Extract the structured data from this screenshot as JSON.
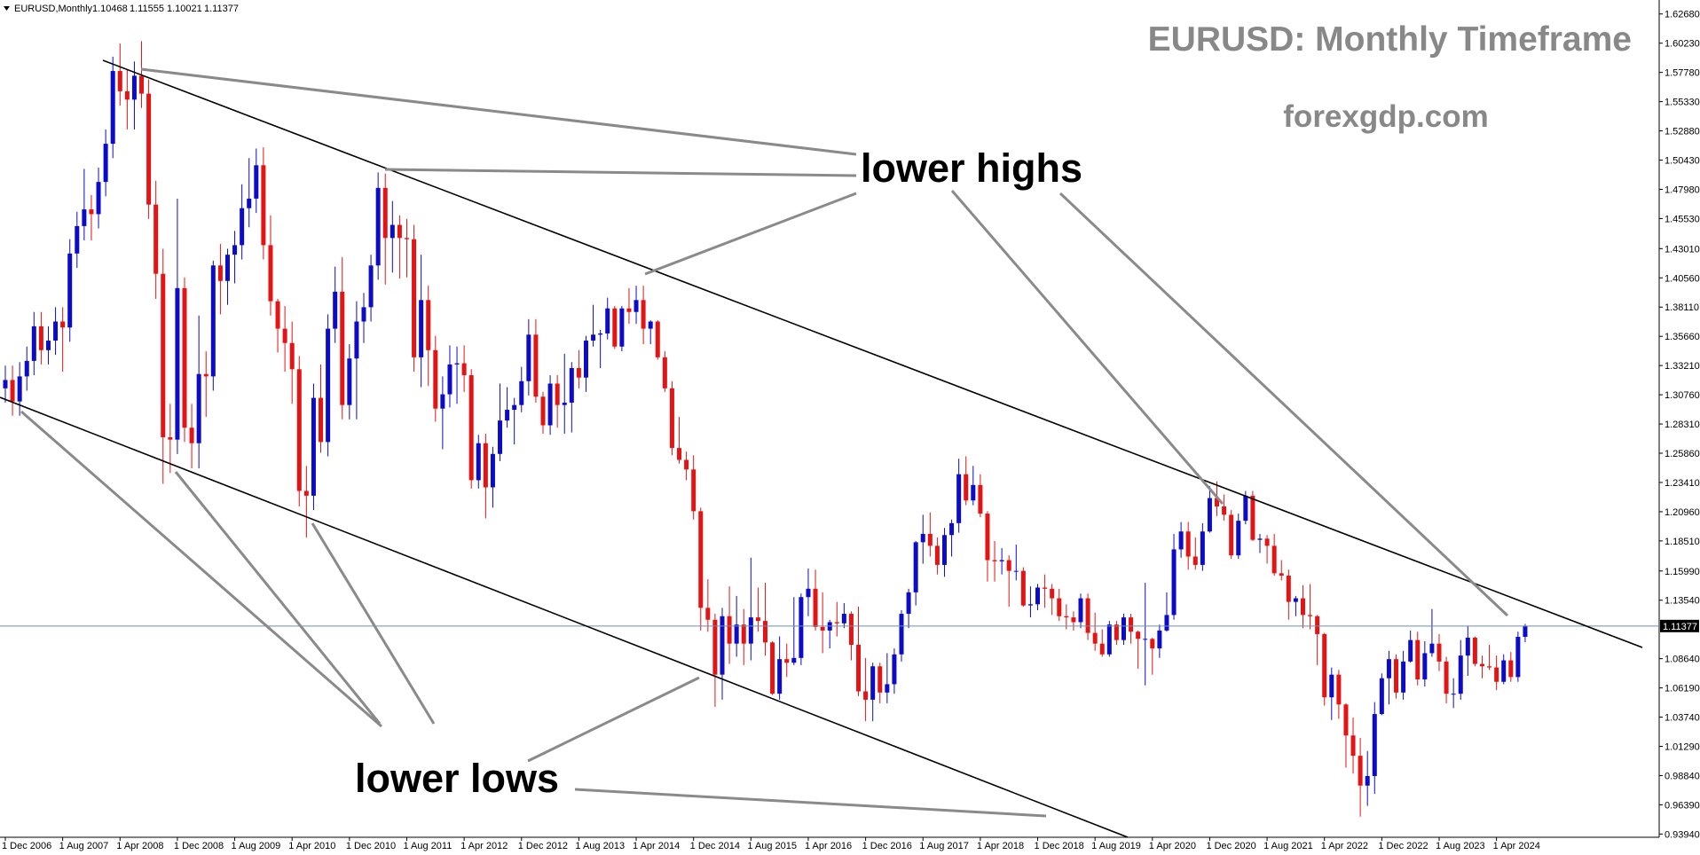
{
  "chart_data": {
    "type": "candlestick",
    "symbol_label": "EURUSD,Monthly",
    "title": "EURUSD: Monthly Timeframe",
    "subtitle": "forexgdp.com",
    "annotations": [
      "lower highs",
      "lower lows"
    ],
    "up_color": "#0c0cc8",
    "down_color": "#e41414",
    "price_line_color": "#6a8fb5",
    "categories": [
      "1 Dec 2006",
      null,
      null,
      null,
      null,
      null,
      null,
      null,
      "1 Aug 2007",
      null,
      null,
      null,
      null,
      null,
      null,
      null,
      "1 Apr 2008",
      null,
      null,
      null,
      null,
      null,
      null,
      null,
      "1 Dec 2008",
      null,
      null,
      null,
      null,
      null,
      null,
      null,
      "1 Aug 2009",
      null,
      null,
      null,
      null,
      null,
      null,
      null,
      "1 Apr 2010",
      null,
      null,
      null,
      null,
      null,
      null,
      null,
      "1 Dec 2010",
      null,
      null,
      null,
      null,
      null,
      null,
      null,
      "1 Aug 2011",
      null,
      null,
      null,
      null,
      null,
      null,
      null,
      "1 Apr 2012",
      null,
      null,
      null,
      null,
      null,
      null,
      null,
      "1 Dec 2012",
      null,
      null,
      null,
      null,
      null,
      null,
      null,
      "1 Aug 2013",
      null,
      null,
      null,
      null,
      null,
      null,
      null,
      "1 Apr 2014",
      null,
      null,
      null,
      null,
      null,
      null,
      null,
      "1 Dec 2014",
      null,
      null,
      null,
      null,
      null,
      null,
      null,
      "1 Aug 2015",
      null,
      null,
      null,
      null,
      null,
      null,
      null,
      "1 Apr 2016",
      null,
      null,
      null,
      null,
      null,
      null,
      null,
      "1 Dec 2016",
      null,
      null,
      null,
      null,
      null,
      null,
      null,
      "1 Aug 2017",
      null,
      null,
      null,
      null,
      null,
      null,
      null,
      "1 Apr 2018",
      null,
      null,
      null,
      null,
      null,
      null,
      null,
      "1 Dec 2018",
      null,
      null,
      null,
      null,
      null,
      null,
      null,
      "1 Aug 2019",
      null,
      null,
      null,
      null,
      null,
      null,
      null,
      "1 Apr 2020",
      null,
      null,
      null,
      null,
      null,
      null,
      null,
      "1 Dec 2020",
      null,
      null,
      null,
      null,
      null,
      null,
      null,
      "1 Aug 2021",
      null,
      null,
      null,
      null,
      null,
      null,
      null,
      "1 Apr 2022",
      null,
      null,
      null,
      null,
      null,
      null,
      null,
      "1 Dec 2022",
      null,
      null,
      null,
      null,
      null,
      null,
      null,
      "1 Aug 2023",
      null,
      null,
      null,
      null,
      null,
      null,
      null,
      "1 Apr 2024",
      null,
      null,
      null,
      null
    ],
    "open": [
      1.313,
      1.32,
      1.302,
      1.323,
      1.336,
      1.365,
      1.345,
      1.353,
      1.369,
      1.364,
      1.426,
      1.449,
      1.463,
      1.459,
      1.486,
      1.518,
      1.579,
      1.562,
      1.555,
      1.575,
      1.56,
      1.467,
      1.409,
      1.272,
      1.27,
      1.397,
      1.28,
      1.267,
      1.325,
      1.323,
      1.416,
      1.403,
      1.425,
      1.433,
      1.464,
      1.472,
      1.5,
      1.433,
      1.386,
      1.363,
      1.351,
      1.329,
      1.227,
      1.223,
      1.305,
      1.268,
      1.363,
      1.394,
      1.299,
      1.338,
      1.369,
      1.381,
      1.416,
      1.481,
      1.439,
      1.45,
      1.439,
      1.438,
      1.339,
      1.387,
      1.345,
      1.296,
      1.308,
      1.333,
      1.334,
      1.324,
      1.236,
      1.267,
      1.23,
      1.258,
      1.286,
      1.295,
      1.299,
      1.319,
      1.358,
      1.306,
      1.282,
      1.317,
      1.299,
      1.301,
      1.33,
      1.322,
      1.353,
      1.358,
      1.359,
      1.38,
      1.348,
      1.38,
      1.377,
      1.387,
      1.363,
      1.369,
      1.339,
      1.313,
      1.263,
      1.253,
      1.245,
      1.21,
      1.129,
      1.119,
      1.073,
      1.122,
      1.099,
      1.115,
      1.099,
      1.121,
      1.118,
      1.1,
      1.057,
      1.086,
      1.083,
      1.087,
      1.138,
      1.145,
      1.113,
      1.11,
      1.117,
      1.116,
      1.124,
      1.098,
      1.059,
      1.052,
      1.08,
      1.058,
      1.065,
      1.09,
      1.124,
      1.142,
      1.184,
      1.191,
      1.181,
      1.165,
      1.19,
      1.2,
      1.241,
      1.219,
      1.232,
      1.208,
      1.169,
      1.168,
      1.169,
      1.16,
      1.16,
      1.131,
      1.132,
      1.146,
      1.145,
      1.137,
      1.122,
      1.121,
      1.117,
      1.137,
      1.108,
      1.099,
      1.09,
      1.115,
      1.102,
      1.121,
      1.109,
      1.103,
      1.103,
      1.095,
      1.11,
      1.123,
      1.178,
      1.193,
      1.172,
      1.165,
      1.193,
      1.221,
      1.214,
      1.207,
      1.173,
      1.202,
      1.223,
      1.186,
      1.187,
      1.181,
      1.158,
      1.156,
      1.134,
      1.137,
      1.123,
      1.122,
      1.107,
      1.054,
      1.073,
      1.048,
      1.022,
      1.005,
      0.98,
      0.988,
      1.04,
      1.07,
      1.086,
      1.058,
      1.084,
      1.102,
      1.069,
      1.091,
      1.099,
      1.084,
      1.057,
      1.057,
      1.089,
      1.104,
      1.082,
      1.08,
      1.079,
      1.067,
      1.085,
      1.071,
      1.10468
    ],
    "high": [
      1.332,
      1.332,
      1.335,
      1.348,
      1.377,
      1.377,
      1.365,
      1.381,
      1.381,
      1.438,
      1.461,
      1.497,
      1.475,
      1.498,
      1.53,
      1.591,
      1.602,
      1.58,
      1.587,
      1.604,
      1.572,
      1.487,
      1.43,
      1.3,
      1.472,
      1.406,
      1.3,
      1.374,
      1.344,
      1.42,
      1.434,
      1.43,
      1.445,
      1.484,
      1.506,
      1.514,
      1.515,
      1.458,
      1.388,
      1.382,
      1.369,
      1.34,
      1.248,
      1.317,
      1.333,
      1.375,
      1.415,
      1.423,
      1.35,
      1.386,
      1.393,
      1.425,
      1.494,
      1.493,
      1.47,
      1.458,
      1.455,
      1.45,
      1.425,
      1.399,
      1.357,
      1.323,
      1.349,
      1.348,
      1.349,
      1.329,
      1.274,
      1.275,
      1.264,
      1.317,
      1.314,
      1.305,
      1.331,
      1.371,
      1.371,
      1.31,
      1.324,
      1.324,
      1.342,
      1.335,
      1.345,
      1.357,
      1.383,
      1.362,
      1.389,
      1.382,
      1.382,
      1.397,
      1.399,
      1.399,
      1.37,
      1.37,
      1.344,
      1.319,
      1.289,
      1.26,
      1.257,
      1.213,
      1.153,
      1.124,
      1.129,
      1.147,
      1.139,
      1.128,
      1.171,
      1.146,
      1.15,
      1.101,
      1.105,
      1.099,
      1.138,
      1.141,
      1.162,
      1.161,
      1.142,
      1.119,
      1.134,
      1.133,
      1.126,
      1.13,
      1.087,
      1.083,
      1.083,
      1.091,
      1.095,
      1.127,
      1.145,
      1.185,
      1.207,
      1.209,
      1.188,
      1.196,
      1.203,
      1.254,
      1.256,
      1.248,
      1.241,
      1.21,
      1.185,
      1.179,
      1.173,
      1.182,
      1.163,
      1.147,
      1.149,
      1.157,
      1.149,
      1.145,
      1.132,
      1.126,
      1.141,
      1.141,
      1.125,
      1.111,
      1.118,
      1.118,
      1.124,
      1.124,
      1.11,
      1.15,
      1.104,
      1.115,
      1.142,
      1.191,
      1.201,
      1.201,
      1.188,
      1.2,
      1.231,
      1.235,
      1.224,
      1.211,
      1.208,
      1.227,
      1.227,
      1.191,
      1.19,
      1.191,
      1.169,
      1.161,
      1.139,
      1.148,
      1.149,
      1.123,
      1.108,
      1.079,
      1.077,
      1.049,
      1.037,
      1.02,
      1.009,
      1.05,
      1.074,
      1.093,
      1.09,
      1.093,
      1.11,
      1.109,
      1.101,
      1.128,
      1.107,
      1.088,
      1.07,
      1.102,
      1.114,
      1.105,
      1.089,
      1.098,
      1.089,
      1.09,
      1.092,
      1.109,
      1.11555
    ],
    "low": [
      1.301,
      1.29,
      1.29,
      1.311,
      1.324,
      1.333,
      1.333,
      1.341,
      1.327,
      1.352,
      1.414,
      1.437,
      1.437,
      1.447,
      1.474,
      1.506,
      1.55,
      1.53,
      1.53,
      1.548,
      1.455,
      1.388,
      1.233,
      1.242,
      1.258,
      1.268,
      1.246,
      1.246,
      1.289,
      1.311,
      1.375,
      1.383,
      1.401,
      1.421,
      1.448,
      1.46,
      1.421,
      1.374,
      1.343,
      1.327,
      1.3,
      1.214,
      1.188,
      1.211,
      1.259,
      1.256,
      1.351,
      1.287,
      1.287,
      1.287,
      1.351,
      1.369,
      1.404,
      1.4,
      1.41,
      1.405,
      1.406,
      1.327,
      1.314,
      1.315,
      1.285,
      1.262,
      1.297,
      1.3,
      1.31,
      1.229,
      1.229,
      1.204,
      1.213,
      1.252,
      1.28,
      1.266,
      1.293,
      1.307,
      1.301,
      1.275,
      1.274,
      1.28,
      1.275,
      1.276,
      1.313,
      1.31,
      1.348,
      1.33,
      1.354,
      1.346,
      1.344,
      1.367,
      1.367,
      1.35,
      1.35,
      1.337,
      1.31,
      1.257,
      1.25,
      1.236,
      1.203,
      1.11,
      1.109,
      1.046,
      1.052,
      1.082,
      1.088,
      1.081,
      1.085,
      1.109,
      1.089,
      1.056,
      1.052,
      1.071,
      1.081,
      1.081,
      1.122,
      1.11,
      1.091,
      1.095,
      1.105,
      1.112,
      1.085,
      1.055,
      1.034,
      1.034,
      1.049,
      1.049,
      1.057,
      1.084,
      1.112,
      1.131,
      1.166,
      1.172,
      1.157,
      1.155,
      1.172,
      1.192,
      1.215,
      1.215,
      1.205,
      1.151,
      1.151,
      1.157,
      1.13,
      1.152,
      1.13,
      1.121,
      1.127,
      1.129,
      1.123,
      1.118,
      1.111,
      1.11,
      1.112,
      1.102,
      1.093,
      1.088,
      1.088,
      1.098,
      1.098,
      1.099,
      1.078,
      1.064,
      1.073,
      1.087,
      1.109,
      1.119,
      1.171,
      1.161,
      1.161,
      1.16,
      1.192,
      1.206,
      1.202,
      1.17,
      1.17,
      1.199,
      1.185,
      1.175,
      1.166,
      1.156,
      1.152,
      1.119,
      1.122,
      1.112,
      1.111,
      1.081,
      1.047,
      1.035,
      1.036,
      0.995,
      0.99,
      0.954,
      0.963,
      0.973,
      1.039,
      1.048,
      1.053,
      1.052,
      1.083,
      1.064,
      1.063,
      1.088,
      1.076,
      1.049,
      1.045,
      1.052,
      1.072,
      1.08,
      1.07,
      1.077,
      1.06,
      1.065,
      1.067,
      1.067,
      1.10021
    ],
    "close": [
      1.32,
      1.302,
      1.323,
      1.336,
      1.365,
      1.345,
      1.353,
      1.369,
      1.364,
      1.426,
      1.449,
      1.463,
      1.459,
      1.486,
      1.518,
      1.579,
      1.562,
      1.555,
      1.575,
      1.56,
      1.467,
      1.409,
      1.272,
      1.27,
      1.397,
      1.28,
      1.267,
      1.325,
      1.323,
      1.416,
      1.403,
      1.425,
      1.433,
      1.464,
      1.472,
      1.5,
      1.433,
      1.386,
      1.363,
      1.351,
      1.329,
      1.227,
      1.223,
      1.305,
      1.268,
      1.363,
      1.394,
      1.299,
      1.338,
      1.369,
      1.381,
      1.416,
      1.481,
      1.439,
      1.45,
      1.439,
      1.438,
      1.339,
      1.387,
      1.345,
      1.296,
      1.308,
      1.333,
      1.334,
      1.324,
      1.236,
      1.267,
      1.23,
      1.258,
      1.286,
      1.295,
      1.299,
      1.319,
      1.358,
      1.306,
      1.282,
      1.317,
      1.299,
      1.301,
      1.33,
      1.322,
      1.353,
      1.358,
      1.359,
      1.38,
      1.348,
      1.38,
      1.377,
      1.387,
      1.363,
      1.369,
      1.339,
      1.313,
      1.263,
      1.253,
      1.245,
      1.21,
      1.129,
      1.119,
      1.073,
      1.122,
      1.099,
      1.115,
      1.099,
      1.121,
      1.118,
      1.1,
      1.057,
      1.086,
      1.083,
      1.087,
      1.138,
      1.145,
      1.113,
      1.11,
      1.117,
      1.116,
      1.124,
      1.098,
      1.059,
      1.052,
      1.08,
      1.058,
      1.065,
      1.09,
      1.124,
      1.142,
      1.184,
      1.191,
      1.181,
      1.165,
      1.19,
      1.2,
      1.241,
      1.219,
      1.232,
      1.208,
      1.169,
      1.168,
      1.169,
      1.16,
      1.16,
      1.131,
      1.132,
      1.146,
      1.145,
      1.137,
      1.122,
      1.121,
      1.117,
      1.137,
      1.108,
      1.099,
      1.09,
      1.115,
      1.102,
      1.121,
      1.109,
      1.103,
      1.103,
      1.095,
      1.11,
      1.123,
      1.178,
      1.193,
      1.172,
      1.165,
      1.193,
      1.221,
      1.214,
      1.207,
      1.173,
      1.202,
      1.223,
      1.186,
      1.187,
      1.181,
      1.158,
      1.156,
      1.134,
      1.137,
      1.123,
      1.122,
      1.107,
      1.054,
      1.073,
      1.048,
      1.022,
      1.005,
      0.98,
      0.988,
      1.04,
      1.07,
      1.086,
      1.058,
      1.084,
      1.102,
      1.069,
      1.091,
      1.099,
      1.084,
      1.057,
      1.057,
      1.089,
      1.104,
      1.082,
      1.08,
      1.079,
      1.067,
      1.085,
      1.071,
      1.1047,
      1.11377
    ],
    "ylim": [
      0.9367,
      1.6385
    ],
    "yticks": [
      {
        "value": 1.6268,
        "label": "1.62680"
      },
      {
        "value": 1.6023,
        "label": "1.60230"
      },
      {
        "value": 1.5778,
        "label": "1.57780"
      },
      {
        "value": 1.5533,
        "label": "1.55330"
      },
      {
        "value": 1.5288,
        "label": "1.52880"
      },
      {
        "value": 1.5043,
        "label": "1.50430"
      },
      {
        "value": 1.4798,
        "label": "1.47980"
      },
      {
        "value": 1.4553,
        "label": "1.45530"
      },
      {
        "value": 1.4301,
        "label": "1.43010"
      },
      {
        "value": 1.4056,
        "label": "1.40560"
      },
      {
        "value": 1.3811,
        "label": "1.38110"
      },
      {
        "value": 1.3566,
        "label": "1.35660"
      },
      {
        "value": 1.3321,
        "label": "1.33210"
      },
      {
        "value": 1.3076,
        "label": "1.30760"
      },
      {
        "value": 1.2831,
        "label": "1.28310"
      },
      {
        "value": 1.2586,
        "label": "1.25860"
      },
      {
        "value": 1.2341,
        "label": "1.23410"
      },
      {
        "value": 1.2096,
        "label": "1.20960"
      },
      {
        "value": 1.1851,
        "label": "1.18510"
      },
      {
        "value": 1.1599,
        "label": "1.15990"
      },
      {
        "value": 1.1354,
        "label": "1.13540"
      },
      {
        "value": 1.0864,
        "label": "1.08640"
      },
      {
        "value": 1.0619,
        "label": "1.06190"
      },
      {
        "value": 1.0374,
        "label": "1.03740"
      },
      {
        "value": 1.0129,
        "label": "1.01290"
      },
      {
        "value": 0.9884,
        "label": "0.98840"
      },
      {
        "value": 0.9639,
        "label": "0.96390"
      },
      {
        "value": 0.9394,
        "label": "0.93940"
      }
    ]
  }
}
